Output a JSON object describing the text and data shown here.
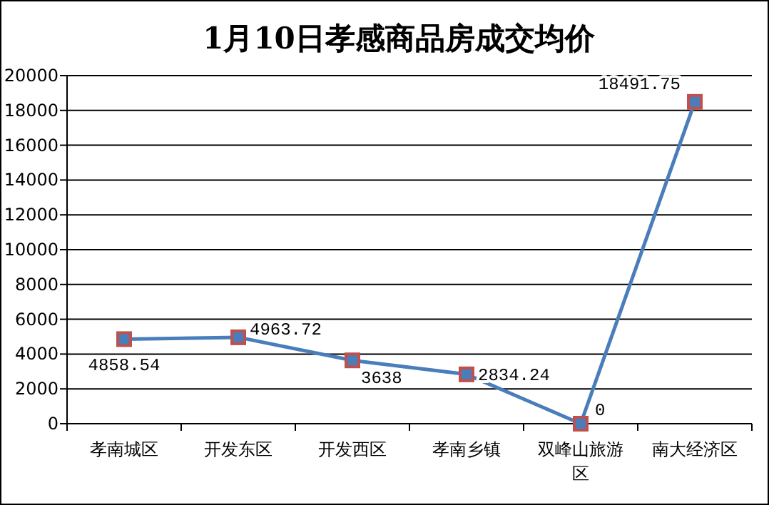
{
  "chart_data": {
    "type": "line",
    "title": "1月10日孝感商品房成交均价",
    "categories": [
      "孝南城区",
      "开发东区",
      "开发西区",
      "孝南乡镇",
      "双峰山旅游区",
      "南大经济区"
    ],
    "series": [
      {
        "color": "#4a7ebb",
        "values": [
          4858.54,
          4963.72,
          3638,
          2834.24,
          0,
          18491.75
        ]
      }
    ],
    "ylim": [
      0,
      20000
    ],
    "yticks": [
      0,
      2000,
      4000,
      6000,
      8000,
      10000,
      12000,
      14000,
      16000,
      18000,
      20000
    ],
    "grid": "y",
    "marker": "square",
    "line_style": "solid",
    "data_labels": true
  }
}
